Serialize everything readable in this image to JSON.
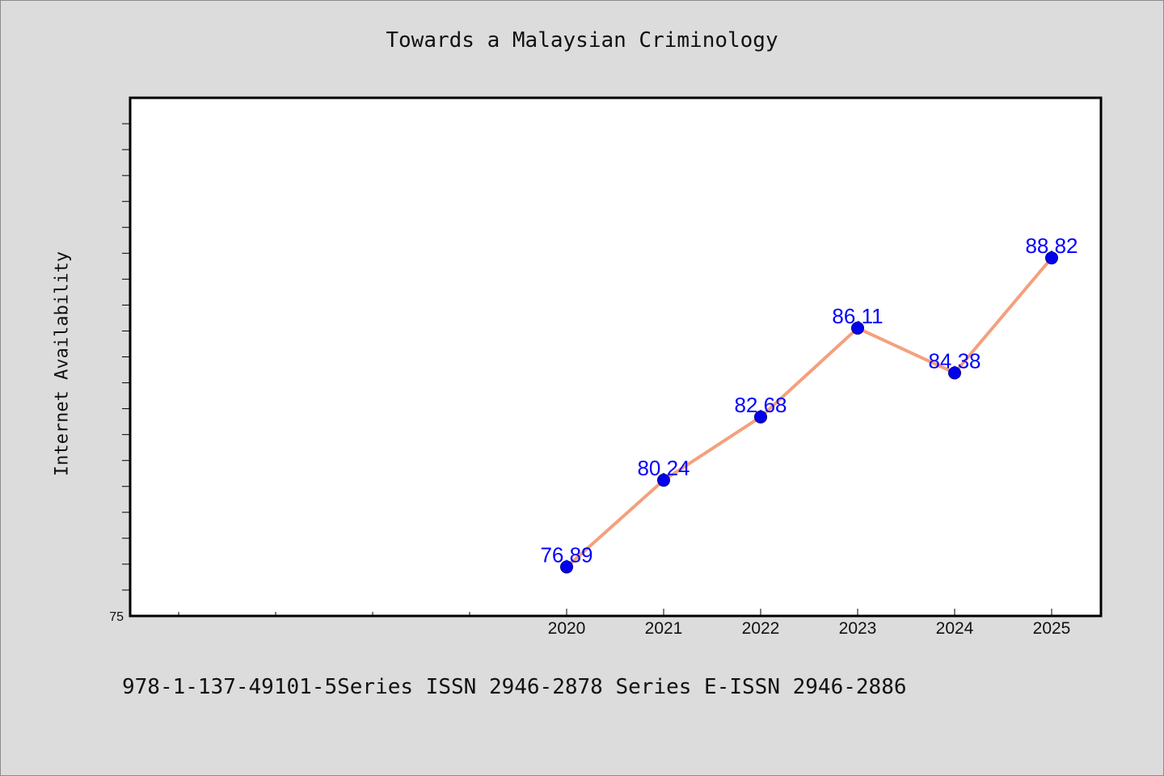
{
  "chart_data": {
    "type": "line",
    "title": "Towards a Malaysian Criminology",
    "xlabel": "",
    "ylabel": "Internet Availability",
    "x": [
      "2020",
      "2021",
      "2022",
      "2023",
      "2024",
      "2025"
    ],
    "series": [
      {
        "values": [
          76.89,
          80.24,
          82.68,
          86.11,
          84.38,
          88.82
        ],
        "data_labels": [
          "76.89",
          "80.24",
          "82.68",
          "86.11",
          "84.38",
          "88.82"
        ]
      }
    ],
    "y_tick_labels": [
      "75"
    ],
    "ylim": [
      75,
      95
    ],
    "grid": false,
    "legend": "none",
    "colors": {
      "line": "#f4a07e",
      "marker": "#0000ee",
      "marker_edge": "#000080",
      "data_label": "#0000ff"
    }
  },
  "footnote": "978-1-137-49101-5Series ISSN 2946-2878 Series E-ISSN 2946-2886"
}
